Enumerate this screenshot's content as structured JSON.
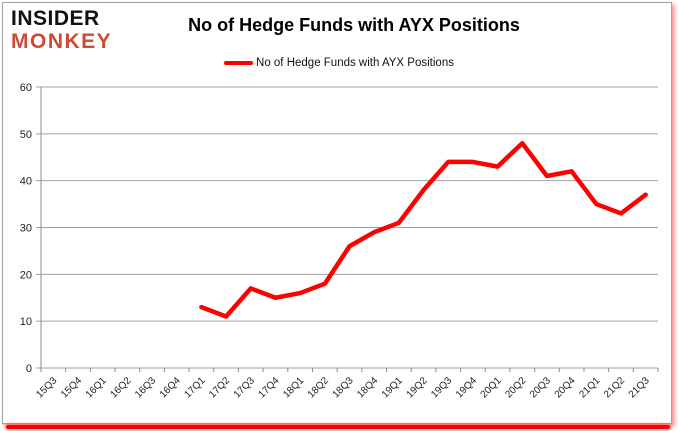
{
  "logo": {
    "line1": "INSIDER",
    "line2": "MONKEY",
    "color_line1": "#111111",
    "color_line2": "#cd4a35"
  },
  "header": {
    "title": "No of Hedge Funds with AYX Positions"
  },
  "legend": {
    "label": "No of Hedge Funds with AYX Positions"
  },
  "chart_data": {
    "type": "line",
    "title": "No of Hedge Funds with AYX Positions",
    "categories": [
      "15Q3",
      "15Q4",
      "16Q1",
      "16Q2",
      "16Q3",
      "16Q4",
      "17Q1",
      "17Q2",
      "17Q3",
      "17Q4",
      "18Q1",
      "18Q2",
      "18Q3",
      "18Q4",
      "19Q1",
      "19Q2",
      "19Q3",
      "19Q4",
      "20Q1",
      "20Q2",
      "20Q3",
      "20Q4",
      "21Q1",
      "21Q2",
      "21Q3"
    ],
    "series": [
      {
        "name": "No of Hedge Funds with AYX Positions",
        "color": "#fe0000",
        "values": [
          null,
          null,
          null,
          null,
          null,
          null,
          13,
          11,
          17,
          15,
          16,
          18,
          26,
          29,
          31,
          38,
          44,
          44,
          43,
          48,
          41,
          42,
          35,
          33,
          37
        ]
      }
    ],
    "xlabel": "",
    "ylabel": "",
    "ylim": [
      0,
      60
    ],
    "yticks": [
      0,
      10,
      20,
      30,
      40,
      50,
      60
    ],
    "grid": "horizontal-only",
    "legend_position": "top-center",
    "grid_color": "#a0a0a0",
    "axis_color": "#8c8c8c",
    "tick_label_color": "#1f1f1f",
    "accent_red": "#fe0000"
  }
}
